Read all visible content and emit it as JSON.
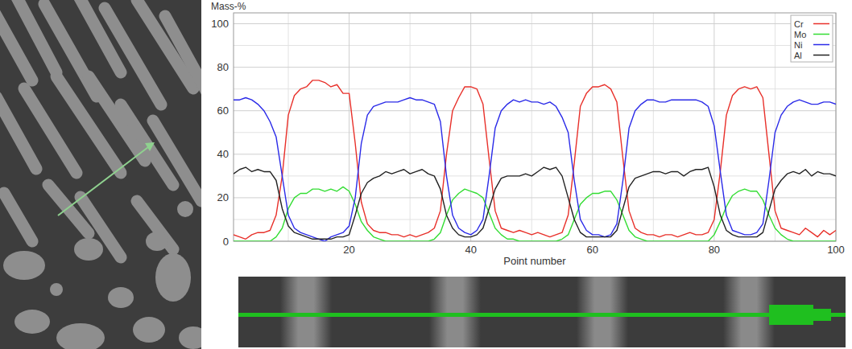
{
  "chart_data": {
    "type": "line",
    "ylabel": "Mass-%",
    "xlabel": "Point number",
    "x": [
      1,
      2,
      3,
      4,
      5,
      6,
      7,
      8,
      9,
      10,
      11,
      12,
      13,
      14,
      15,
      16,
      17,
      18,
      19,
      20,
      21,
      22,
      23,
      24,
      25,
      26,
      27,
      28,
      29,
      30,
      31,
      32,
      33,
      34,
      35,
      36,
      37,
      38,
      39,
      40,
      41,
      42,
      43,
      44,
      45,
      46,
      47,
      48,
      49,
      50,
      51,
      52,
      53,
      54,
      55,
      56,
      57,
      58,
      59,
      60,
      61,
      62,
      63,
      64,
      65,
      66,
      67,
      68,
      69,
      70,
      71,
      72,
      73,
      74,
      75,
      76,
      77,
      78,
      79,
      80,
      81,
      82,
      83,
      84,
      85,
      86,
      87,
      88,
      89,
      90,
      91,
      92,
      93,
      94,
      95,
      96,
      97,
      98,
      99,
      100
    ],
    "series": [
      {
        "name": "Cr",
        "color": "#e8302a",
        "values": [
          3,
          2,
          1,
          3,
          4,
          4,
          5,
          12,
          30,
          58,
          67,
          70,
          71,
          74,
          74,
          73,
          71,
          72,
          68,
          68,
          45,
          18,
          8,
          5,
          4,
          4,
          3,
          3,
          2,
          3,
          2,
          3,
          4,
          6,
          14,
          40,
          60,
          66,
          71,
          71,
          70,
          63,
          38,
          14,
          6,
          5,
          4,
          5,
          4,
          3,
          4,
          3,
          2,
          3,
          4,
          12,
          36,
          62,
          68,
          71,
          71,
          72,
          70,
          64,
          38,
          14,
          6,
          4,
          3,
          3,
          2,
          3,
          3,
          2,
          3,
          4,
          3,
          3,
          4,
          10,
          32,
          58,
          67,
          70,
          71,
          70,
          71,
          66,
          40,
          14,
          6,
          5,
          4,
          3,
          6,
          4,
          2,
          5,
          3,
          5
        ]
      },
      {
        "name": "Mo",
        "color": "#33dd33",
        "values": [
          0,
          0,
          0,
          0,
          0,
          0,
          0,
          2,
          6,
          15,
          20,
          22,
          22,
          24,
          24,
          23,
          24,
          23,
          25,
          23,
          17,
          9,
          5,
          2,
          1,
          0,
          0,
          0,
          0,
          0,
          0,
          0,
          0,
          1,
          4,
          12,
          19,
          22,
          24,
          23,
          22,
          20,
          13,
          6,
          3,
          1,
          1,
          0,
          0,
          0,
          0,
          0,
          0,
          0,
          1,
          3,
          10,
          17,
          20,
          22,
          22,
          23,
          23,
          19,
          12,
          5,
          2,
          1,
          0,
          0,
          0,
          0,
          0,
          0,
          0,
          0,
          0,
          0,
          0,
          3,
          9,
          16,
          21,
          23,
          24,
          23,
          23,
          19,
          12,
          6,
          3,
          1,
          0,
          0,
          0,
          0,
          0,
          0,
          0,
          0
        ]
      },
      {
        "name": "Ni",
        "color": "#2a2ae8",
        "values": [
          65,
          65,
          66,
          65,
          63,
          60,
          55,
          48,
          30,
          12,
          6,
          4,
          3,
          2,
          1,
          0,
          2,
          3,
          4,
          7,
          20,
          45,
          58,
          62,
          63,
          64,
          64,
          64,
          65,
          66,
          65,
          65,
          64,
          63,
          55,
          30,
          12,
          6,
          4,
          3,
          5,
          10,
          30,
          52,
          60,
          63,
          65,
          64,
          65,
          64,
          64,
          63,
          64,
          62,
          57,
          50,
          28,
          10,
          5,
          3,
          3,
          2,
          3,
          8,
          28,
          52,
          60,
          63,
          65,
          65,
          64,
          64,
          65,
          65,
          65,
          65,
          65,
          64,
          62,
          53,
          32,
          12,
          5,
          4,
          3,
          3,
          4,
          8,
          28,
          50,
          58,
          62,
          64,
          65,
          64,
          63,
          63,
          64,
          64,
          63
        ]
      },
      {
        "name": "Al",
        "color": "#222222",
        "values": [
          31,
          33,
          34,
          32,
          33,
          32,
          32,
          28,
          15,
          7,
          4,
          3,
          2,
          1,
          1,
          1,
          1,
          2,
          2,
          3,
          12,
          22,
          27,
          29,
          30,
          32,
          31,
          32,
          33,
          31,
          32,
          33,
          31,
          30,
          24,
          12,
          6,
          3,
          2,
          2,
          3,
          6,
          15,
          24,
          29,
          30,
          30,
          30,
          31,
          30,
          32,
          34,
          33,
          34,
          30,
          20,
          10,
          4,
          2,
          2,
          2,
          2,
          2,
          5,
          15,
          25,
          29,
          30,
          31,
          32,
          32,
          31,
          32,
          32,
          30,
          32,
          33,
          33,
          34,
          25,
          12,
          5,
          3,
          2,
          2,
          2,
          2,
          4,
          14,
          24,
          28,
          31,
          32,
          31,
          33,
          30,
          32,
          31,
          31,
          30
        ]
      }
    ],
    "xlim": [
      1,
      100
    ],
    "xticks": [
      20,
      40,
      60,
      80,
      100
    ],
    "ylim": [
      0,
      105
    ],
    "yticks": [
      0,
      20,
      40,
      60,
      80,
      100
    ],
    "grid": true,
    "legend": "top-right"
  }
}
